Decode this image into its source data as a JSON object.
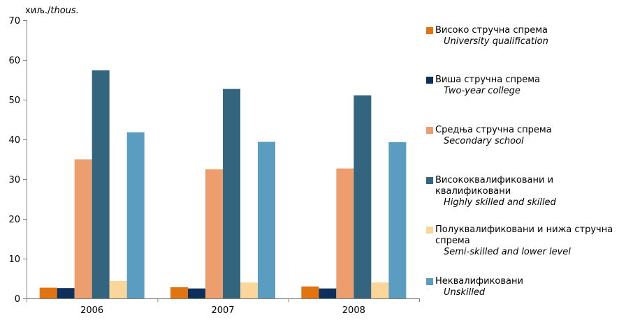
{
  "chart_data": {
    "type": "bar",
    "unit_label": {
      "sr": "хиљ./",
      "en": "thous."
    },
    "categories": [
      "2006",
      "2007",
      "2008"
    ],
    "ylim": [
      0,
      70
    ],
    "yticks": [
      "0",
      "10",
      "20",
      "30",
      "40",
      "50",
      "60",
      "70"
    ],
    "grid": false,
    "legend_position": "right",
    "series": [
      {
        "name": "Високо стручна спрема",
        "name_en": "University qualification",
        "color": "#E2740F",
        "values": [
          2.7,
          2.8,
          3.0
        ]
      },
      {
        "name": "Виша стручна спрема",
        "name_en": "Two-year college",
        "color": "#0C2F5C",
        "values": [
          2.6,
          2.5,
          2.5
        ]
      },
      {
        "name": "Средња стручна спрема",
        "name_en": "Secondary school",
        "color": "#ED9E6E",
        "values": [
          35.0,
          32.5,
          32.7
        ]
      },
      {
        "name": "Висококвалификовани и квалификовани",
        "name_en": "Highly skilled and skilled",
        "color": "#33657F",
        "values": [
          57.4,
          52.7,
          51.1
        ]
      },
      {
        "name": "Полуквалификовани и нижа стручна спрема",
        "name_en": "Semi-skilled and lower level",
        "color": "#FAD69B",
        "values": [
          4.4,
          4.0,
          4.0
        ]
      },
      {
        "name": "Неквалификовани",
        "name_en": "Unskilled",
        "color": "#5B9CC1",
        "values": [
          41.8,
          39.4,
          39.3
        ]
      }
    ]
  }
}
